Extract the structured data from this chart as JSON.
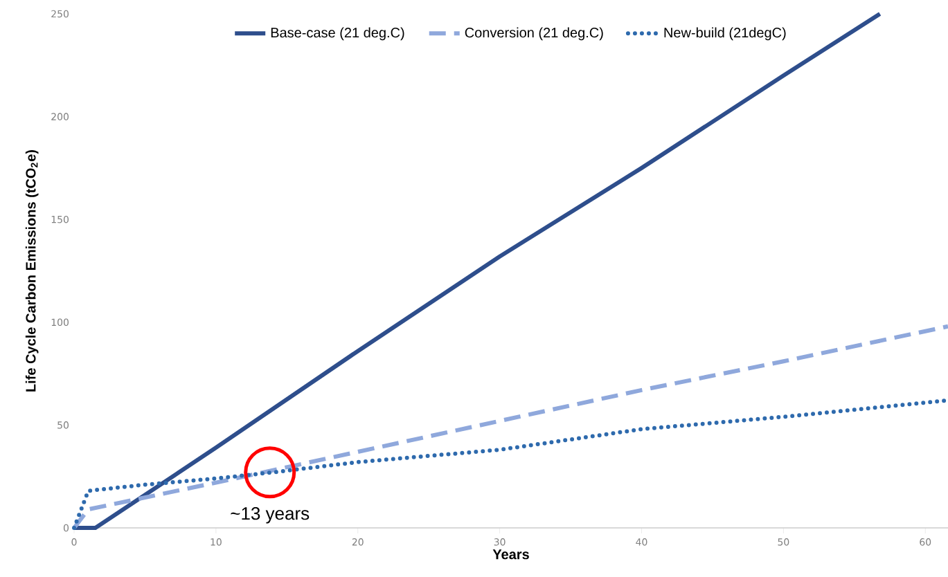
{
  "chart_data": {
    "type": "line",
    "xlabel": "Years",
    "ylabel": "Life Cycle Carbon Emissions (tCO$_{2}$e)",
    "xlim": [
      0,
      61.6
    ],
    "ylim": [
      0,
      250
    ],
    "xticks": [
      0,
      10,
      20,
      30,
      40,
      50,
      60
    ],
    "yticks": [
      0,
      50,
      100,
      150,
      200,
      250
    ],
    "grid": false,
    "legend": "top",
    "annotations": [
      {
        "text": "~13 years",
        "x": 13.8,
        "y": 27
      }
    ],
    "series": [
      {
        "name": "Base-case (21 deg.C)",
        "color": "#2e4e8c",
        "line_style": "solid",
        "x": [
          0,
          1.5,
          10,
          20,
          30,
          40,
          50,
          56.8
        ],
        "values": [
          0,
          0,
          39,
          86,
          132,
          175,
          220,
          250
        ]
      },
      {
        "name": "Conversion (21 deg.C)",
        "color": "#8fa8dc",
        "line_style": "dashed",
        "x": [
          0,
          1,
          10,
          20,
          30,
          40,
          50,
          61.6
        ],
        "values": [
          0,
          9,
          22,
          37,
          52,
          67,
          81,
          98
        ]
      },
      {
        "name": "New-build (21degC)",
        "color": "#2e6aad",
        "line_style": "dotted",
        "x": [
          0,
          1,
          5,
          10,
          14,
          20,
          30,
          40,
          50,
          61.6
        ],
        "values": [
          0,
          18,
          21,
          24,
          27,
          32,
          38,
          48,
          54,
          62
        ]
      }
    ]
  }
}
